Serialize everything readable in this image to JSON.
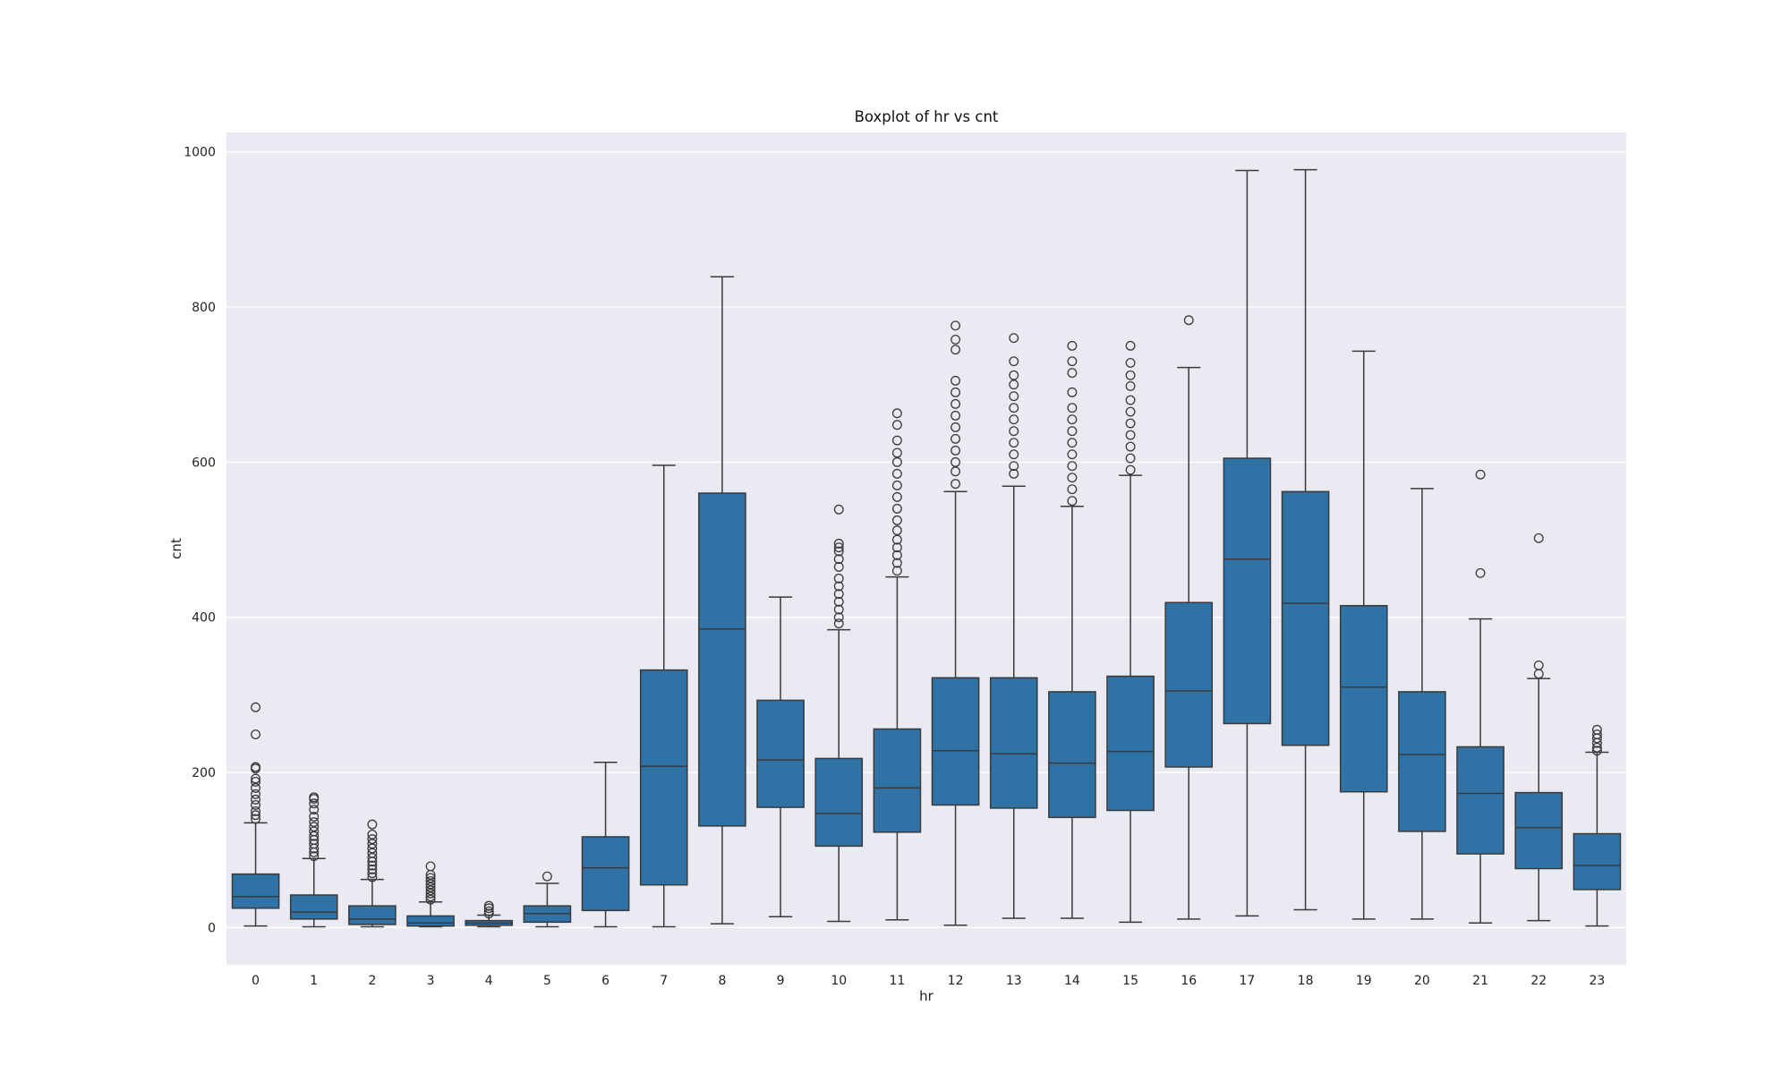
{
  "chart_data": {
    "type": "box",
    "title": "Boxplot of hr vs cnt",
    "xlabel": "hr",
    "ylabel": "cnt",
    "ylim": [
      -48,
      1025
    ],
    "yticks": [
      0,
      200,
      400,
      600,
      800,
      1000
    ],
    "grid": true,
    "colors": {
      "box_fill": "#2e72a6",
      "line": "#3a3a3a",
      "plot_background": "#eaeaf2",
      "grid": "#ffffff",
      "flier_edge": "#3a3a3a"
    },
    "categories": [
      "0",
      "1",
      "2",
      "3",
      "4",
      "5",
      "6",
      "7",
      "8",
      "9",
      "10",
      "11",
      "12",
      "13",
      "14",
      "15",
      "16",
      "17",
      "18",
      "19",
      "20",
      "21",
      "22",
      "23"
    ],
    "boxes": [
      {
        "hr": "0",
        "whisker_low": 2,
        "q1": 25,
        "median": 40,
        "q3": 69,
        "whisker_high": 135,
        "fliers": [
          140,
          145,
          150,
          158,
          165,
          172,
          180,
          188,
          192,
          205,
          207,
          249,
          284
        ]
      },
      {
        "hr": "1",
        "whisker_low": 1,
        "q1": 11,
        "median": 20,
        "q3": 42,
        "whisker_high": 89,
        "fliers": [
          92,
          97,
          102,
          108,
          113,
          118,
          124,
          130,
          136,
          143,
          152,
          160,
          166,
          168
        ]
      },
      {
        "hr": "2",
        "whisker_low": 1,
        "q1": 4,
        "median": 11,
        "q3": 28,
        "whisker_high": 62,
        "fliers": [
          65,
          70,
          75,
          80,
          85,
          90,
          96,
          102,
          108,
          114,
          120,
          133
        ]
      },
      {
        "hr": "3",
        "whisker_low": 1,
        "q1": 2,
        "median": 6,
        "q3": 15,
        "whisker_high": 33,
        "fliers": [
          36,
          40,
          44,
          48,
          52,
          56,
          60,
          64,
          68,
          79
        ]
      },
      {
        "hr": "4",
        "whisker_low": 1,
        "q1": 3,
        "median": 6,
        "q3": 9,
        "whisker_high": 16,
        "fliers": [
          18,
          21,
          25,
          28
        ]
      },
      {
        "hr": "5",
        "whisker_low": 1,
        "q1": 7,
        "median": 18,
        "q3": 28,
        "whisker_high": 57,
        "fliers": [
          66
        ]
      },
      {
        "hr": "6",
        "whisker_low": 1,
        "q1": 22,
        "median": 77,
        "q3": 117,
        "whisker_high": 213,
        "fliers": []
      },
      {
        "hr": "7",
        "whisker_low": 1,
        "q1": 55,
        "median": 208,
        "q3": 332,
        "whisker_high": 596,
        "fliers": []
      },
      {
        "hr": "8",
        "whisker_low": 5,
        "q1": 131,
        "median": 385,
        "q3": 560,
        "whisker_high": 839,
        "fliers": []
      },
      {
        "hr": "9",
        "whisker_low": 14,
        "q1": 155,
        "median": 216,
        "q3": 293,
        "whisker_high": 426,
        "fliers": []
      },
      {
        "hr": "10",
        "whisker_low": 8,
        "q1": 105,
        "median": 147,
        "q3": 218,
        "whisker_high": 384,
        "fliers": [
          392,
          400,
          410,
          420,
          430,
          440,
          450,
          465,
          475,
          485,
          490,
          495,
          539
        ]
      },
      {
        "hr": "11",
        "whisker_low": 10,
        "q1": 123,
        "median": 180,
        "q3": 256,
        "whisker_high": 452,
        "fliers": [
          460,
          470,
          480,
          490,
          500,
          512,
          525,
          540,
          555,
          570,
          585,
          600,
          612,
          628,
          648,
          663
        ]
      },
      {
        "hr": "12",
        "whisker_low": 3,
        "q1": 158,
        "median": 228,
        "q3": 322,
        "whisker_high": 562,
        "fliers": [
          572,
          588,
          600,
          615,
          630,
          645,
          660,
          675,
          690,
          705,
          745,
          758,
          776
        ]
      },
      {
        "hr": "13",
        "whisker_low": 12,
        "q1": 154,
        "median": 224,
        "q3": 322,
        "whisker_high": 569,
        "fliers": [
          585,
          595,
          610,
          625,
          640,
          655,
          670,
          685,
          700,
          712,
          730,
          760
        ]
      },
      {
        "hr": "14",
        "whisker_low": 12,
        "q1": 142,
        "median": 212,
        "q3": 304,
        "whisker_high": 543,
        "fliers": [
          550,
          565,
          580,
          595,
          610,
          625,
          640,
          655,
          670,
          690,
          715,
          730,
          750
        ]
      },
      {
        "hr": "15",
        "whisker_low": 7,
        "q1": 151,
        "median": 227,
        "q3": 324,
        "whisker_high": 583,
        "fliers": [
          590,
          605,
          620,
          635,
          650,
          665,
          680,
          698,
          712,
          728,
          750
        ]
      },
      {
        "hr": "16",
        "whisker_low": 11,
        "q1": 207,
        "median": 305,
        "q3": 419,
        "whisker_high": 722,
        "fliers": [
          783
        ]
      },
      {
        "hr": "17",
        "whisker_low": 15,
        "q1": 263,
        "median": 475,
        "q3": 605,
        "whisker_high": 976,
        "fliers": []
      },
      {
        "hr": "18",
        "whisker_low": 23,
        "q1": 235,
        "median": 418,
        "q3": 562,
        "whisker_high": 977,
        "fliers": []
      },
      {
        "hr": "19",
        "whisker_low": 11,
        "q1": 175,
        "median": 310,
        "q3": 415,
        "whisker_high": 743,
        "fliers": []
      },
      {
        "hr": "20",
        "whisker_low": 11,
        "q1": 124,
        "median": 223,
        "q3": 304,
        "whisker_high": 566,
        "fliers": []
      },
      {
        "hr": "21",
        "whisker_low": 6,
        "q1": 95,
        "median": 173,
        "q3": 233,
        "whisker_high": 398,
        "fliers": [
          457,
          584
        ]
      },
      {
        "hr": "22",
        "whisker_low": 9,
        "q1": 76,
        "median": 129,
        "q3": 174,
        "whisker_high": 321,
        "fliers": [
          327,
          338,
          502
        ]
      },
      {
        "hr": "23",
        "whisker_low": 2,
        "q1": 49,
        "median": 80,
        "q3": 121,
        "whisker_high": 226,
        "fliers": [
          228,
          232,
          238,
          244,
          249,
          255
        ]
      }
    ]
  }
}
